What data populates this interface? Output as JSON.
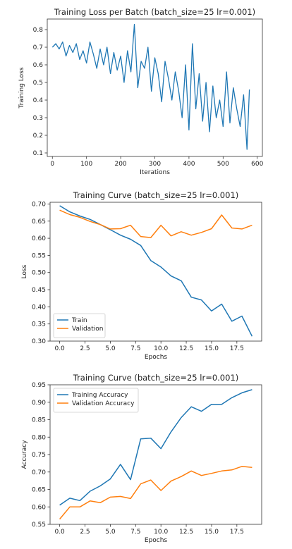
{
  "colors": {
    "blue": "#1f77b4",
    "orange": "#ff7f0e"
  },
  "chart_data": [
    {
      "type": "line",
      "title": "Training Loss per Batch (batch_size=25 lr=0.001)",
      "xlabel": "Iterations",
      "ylabel": "Training Loss",
      "xlim": [
        -15,
        615
      ],
      "ylim": [
        0.08,
        0.86
      ],
      "xticks": [
        0,
        100,
        200,
        300,
        400,
        500,
        600
      ],
      "yticks": [
        0.1,
        0.2,
        0.3,
        0.4,
        0.5,
        0.6,
        0.7,
        0.8
      ],
      "ytick_labels": [
        "0.1",
        "0.2",
        "0.3",
        "0.4",
        "0.5",
        "0.6",
        "0.7",
        "0.8"
      ],
      "grid": false,
      "series": [
        {
          "color": "#1f77b4",
          "x": [
            0,
            10,
            20,
            30,
            40,
            50,
            60,
            70,
            80,
            90,
            100,
            110,
            120,
            130,
            140,
            150,
            160,
            170,
            180,
            190,
            200,
            210,
            220,
            230,
            240,
            250,
            260,
            270,
            280,
            290,
            300,
            310,
            320,
            330,
            340,
            350,
            360,
            370,
            380,
            390,
            400,
            410,
            420,
            430,
            440,
            450,
            460,
            470,
            480,
            490,
            500,
            510,
            520,
            530,
            540,
            550,
            560,
            570,
            577
          ],
          "y": [
            0.7,
            0.72,
            0.69,
            0.73,
            0.65,
            0.71,
            0.67,
            0.72,
            0.63,
            0.68,
            0.61,
            0.73,
            0.66,
            0.58,
            0.69,
            0.6,
            0.7,
            0.55,
            0.67,
            0.57,
            0.65,
            0.5,
            0.68,
            0.56,
            0.83,
            0.47,
            0.62,
            0.58,
            0.7,
            0.45,
            0.64,
            0.55,
            0.39,
            0.62,
            0.52,
            0.4,
            0.56,
            0.45,
            0.3,
            0.6,
            0.23,
            0.72,
            0.35,
            0.55,
            0.28,
            0.5,
            0.22,
            0.48,
            0.3,
            0.4,
            0.25,
            0.56,
            0.27,
            0.47,
            0.35,
            0.25,
            0.43,
            0.12,
            0.46
          ]
        }
      ]
    },
    {
      "type": "line",
      "title": "Training Curve (batch_size=25 lr=0.001)",
      "xlabel": "Epochs",
      "ylabel": "Loss",
      "xlim": [
        -0.95,
        19.95
      ],
      "ylim": [
        0.3,
        0.705
      ],
      "xticks": [
        0,
        2.5,
        5,
        7.5,
        10,
        12.5,
        15,
        17.5
      ],
      "xtick_labels": [
        "0.0",
        "2.5",
        "5.0",
        "7.5",
        "10.0",
        "12.5",
        "15.0",
        "17.5"
      ],
      "yticks": [
        0.3,
        0.35,
        0.4,
        0.45,
        0.5,
        0.55,
        0.6,
        0.65,
        0.7
      ],
      "ytick_labels": [
        "0.30",
        "0.35",
        "0.40",
        "0.45",
        "0.50",
        "0.55",
        "0.60",
        "0.65",
        "0.70"
      ],
      "grid": false,
      "legend_position": "lower-left",
      "series": [
        {
          "name": "Train",
          "color": "#1f77b4",
          "x": [
            0,
            1,
            2,
            3,
            4,
            5,
            6,
            7,
            8,
            9,
            10,
            11,
            12,
            13,
            14,
            15,
            16,
            17,
            18,
            19
          ],
          "y": [
            0.695,
            0.677,
            0.665,
            0.655,
            0.64,
            0.625,
            0.609,
            0.597,
            0.579,
            0.535,
            0.516,
            0.49,
            0.476,
            0.428,
            0.42,
            0.388,
            0.408,
            0.358,
            0.373,
            0.314
          ]
        },
        {
          "name": "Validation",
          "color": "#ff7f0e",
          "x": [
            0,
            1,
            2,
            3,
            4,
            5,
            6,
            7,
            8,
            9,
            10,
            11,
            12,
            13,
            14,
            15,
            16,
            17,
            18,
            19
          ],
          "y": [
            0.682,
            0.669,
            0.661,
            0.649,
            0.64,
            0.627,
            0.628,
            0.638,
            0.605,
            0.602,
            0.638,
            0.607,
            0.619,
            0.609,
            0.617,
            0.628,
            0.668,
            0.63,
            0.627,
            0.638
          ]
        }
      ]
    },
    {
      "type": "line",
      "title": "Training Curve (batch_size=25 lr=0.001)",
      "xlabel": "Epochs",
      "ylabel": "Accuracy",
      "xlim": [
        -0.95,
        19.95
      ],
      "ylim": [
        0.55,
        0.95
      ],
      "xticks": [
        0,
        2.5,
        5,
        7.5,
        10,
        12.5,
        15,
        17.5
      ],
      "xtick_labels": [
        "0.0",
        "2.5",
        "5.0",
        "7.5",
        "10.0",
        "12.5",
        "15.0",
        "17.5"
      ],
      "yticks": [
        0.55,
        0.6,
        0.65,
        0.7,
        0.75,
        0.8,
        0.85,
        0.9,
        0.95
      ],
      "ytick_labels": [
        "0.55",
        "0.60",
        "0.65",
        "0.70",
        "0.75",
        "0.80",
        "0.85",
        "0.90",
        "0.95"
      ],
      "grid": false,
      "legend_position": "upper-left",
      "series": [
        {
          "name": "Training Accuracy",
          "color": "#1f77b4",
          "x": [
            0,
            1,
            2,
            3,
            4,
            5,
            6,
            7,
            8,
            9,
            10,
            11,
            12,
            13,
            14,
            15,
            16,
            17,
            18,
            19
          ],
          "y": [
            0.605,
            0.625,
            0.618,
            0.645,
            0.66,
            0.68,
            0.722,
            0.678,
            0.795,
            0.797,
            0.767,
            0.815,
            0.856,
            0.887,
            0.874,
            0.894,
            0.894,
            0.913,
            0.927,
            0.936
          ]
        },
        {
          "name": "Validation Accuracy",
          "color": "#ff7f0e",
          "x": [
            0,
            1,
            2,
            3,
            4,
            5,
            6,
            7,
            8,
            9,
            10,
            11,
            12,
            13,
            14,
            15,
            16,
            17,
            18,
            19
          ],
          "y": [
            0.565,
            0.6,
            0.6,
            0.617,
            0.612,
            0.628,
            0.63,
            0.624,
            0.666,
            0.677,
            0.647,
            0.674,
            0.687,
            0.703,
            0.69,
            0.696,
            0.703,
            0.706,
            0.716,
            0.713
          ]
        }
      ]
    }
  ]
}
